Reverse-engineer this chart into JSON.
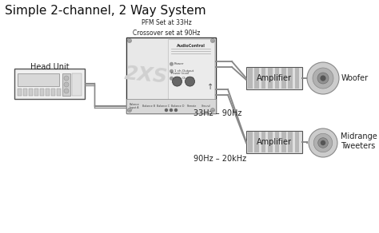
{
  "title": "Simple 2-channel, 2 Way System",
  "bg_color": "#ffffff",
  "title_fontsize": 11,
  "label_fontsize": 7,
  "small_fontsize": 5.5,
  "tiny_fontsize": 4.0,
  "pfm_text": "PFM Set at 33Hz\nCrossover set at 90Hz",
  "head_unit_label": "Head Unit",
  "amplifier_label": "Amplifier",
  "woofer_label": "Woofer",
  "midrange_label": "Midrange\nTweeters",
  "freq_upper": "33Hz – 90Hz",
  "freq_lower": "90Hz – 20kHz",
  "wire_color": "#888888",
  "wire_lw": 1.5,
  "box_facecolor": "#efefef",
  "amp_facecolor": "#d8d8d8",
  "amp_fin_color": "#c8c8c8",
  "outline_color": "#555555",
  "dark_color": "#333333",
  "knob_color": "#666666",
  "screw_color": "#aaaaaa",
  "speaker_outer": "#cccccc",
  "speaker_mid": "#aaaaaa",
  "speaker_inner": "#888888",
  "speaker_cap": "#444444"
}
